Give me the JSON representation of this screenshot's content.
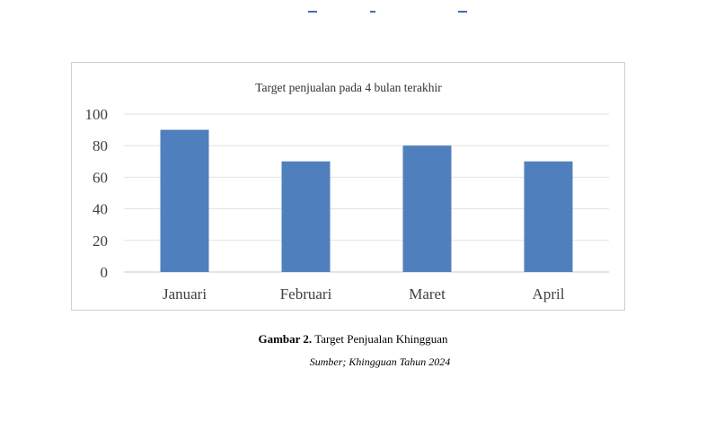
{
  "chart_data": {
    "type": "bar",
    "title": "Target penjualan pada 4 bulan terakhir",
    "categories": [
      "Januari",
      "Februari",
      "Maret",
      "April"
    ],
    "values": [
      90,
      70,
      80,
      70
    ],
    "ylim": [
      0,
      100
    ],
    "yticks": [
      0,
      20,
      40,
      60,
      80,
      100
    ],
    "bar_color": "#4f7fbd",
    "grid": true,
    "legend": "none"
  },
  "figure": {
    "caption_label": "Gambar 2.",
    "caption_text": "Target Penjualan Khingguan",
    "source": "Sumber; Khingguan Tahun 2024"
  }
}
